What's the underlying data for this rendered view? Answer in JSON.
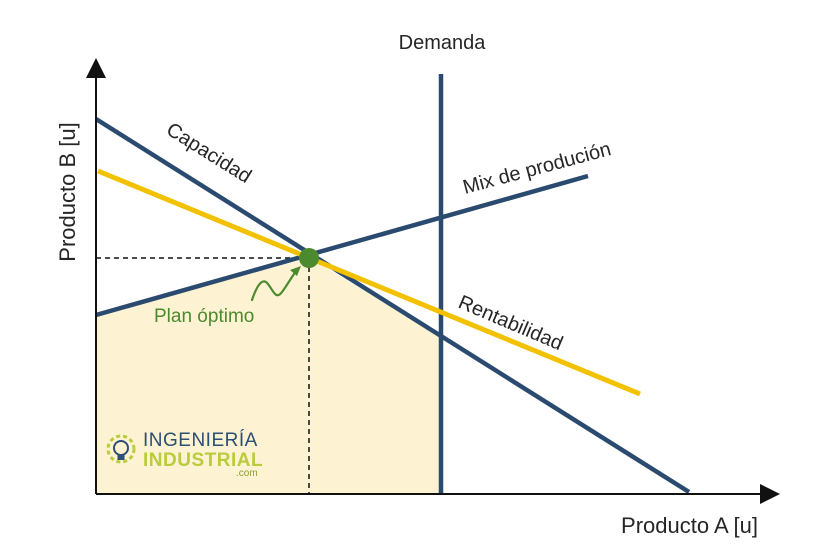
{
  "axes": {
    "x_label": "Producto A [u]",
    "y_label": "Producto B [u]"
  },
  "lines": {
    "demanda": "Demanda",
    "capacidad": "Capacidad",
    "mix": "Mix de produción",
    "rentabilidad": "Rentabilidad"
  },
  "optimum": {
    "label": "Plan óptimo"
  },
  "logo": {
    "line1": "INGENIERÍA",
    "line2": "INDUSTRIAL",
    "line3": ".com"
  },
  "colors": {
    "constraint_line": "#2b4a6f",
    "profit_line": "#f2c100",
    "feasible_region": "#fdf2d2",
    "optimum_point": "#4c8a2e",
    "axis": "#111111"
  }
}
